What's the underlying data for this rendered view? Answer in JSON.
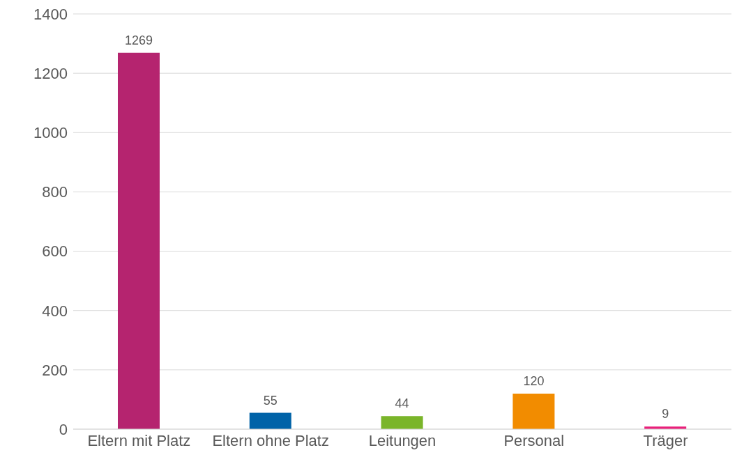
{
  "chart_data": {
    "type": "bar",
    "categories": [
      "Eltern mit Platz",
      "Eltern ohne Platz",
      "Leitungen",
      "Personal",
      "Träger"
    ],
    "values": [
      1269,
      55,
      44,
      120,
      9
    ],
    "colors": [
      "#b5246f",
      "#0063a8",
      "#7ab52a",
      "#f28c00",
      "#e8217a"
    ],
    "ylim": [
      0,
      1400
    ],
    "yticks": [
      0,
      200,
      400,
      600,
      800,
      1000,
      1200,
      1400
    ],
    "grid": "y",
    "data_labels": true
  }
}
